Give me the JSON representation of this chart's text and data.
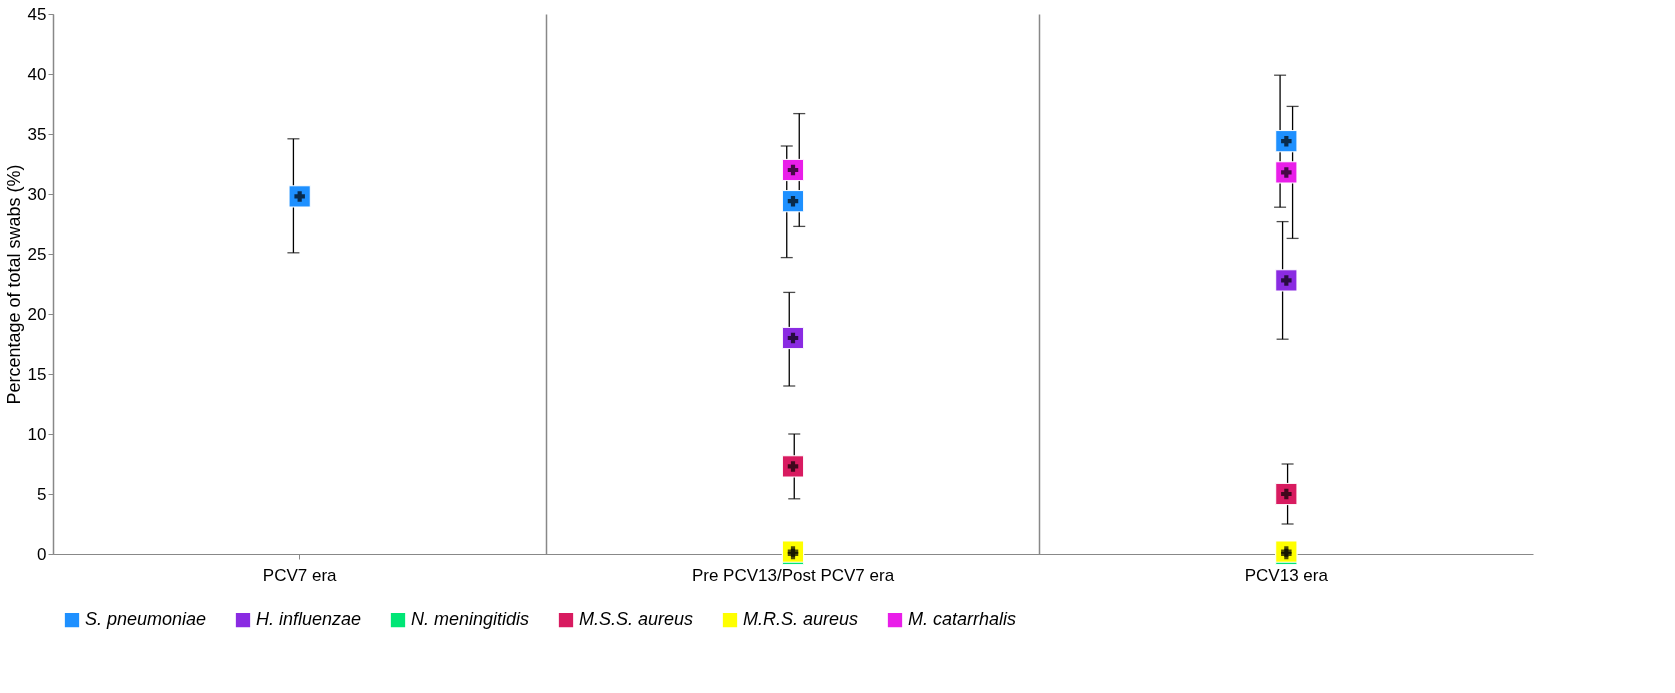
{
  "chart_data": {
    "type": "scatter",
    "ylabel": "Percentage of total swabs (%)",
    "categories": [
      "PCV7 era",
      "Pre PCV13/Post PCV7 era",
      "PCV13 era"
    ],
    "ylim": [
      0,
      45
    ],
    "yticks": [
      0,
      5,
      10,
      15,
      20,
      25,
      30,
      35,
      40,
      45
    ],
    "grid": "x",
    "legend": "bottom",
    "marker": "square",
    "series": [
      {
        "name": "S. pneumoniae",
        "color": "#1e90ff",
        "values": [
          29.8,
          29.4,
          34.4
        ],
        "errors": [
          [
            25.1,
            34.6
          ],
          [
            24.7,
            34.0
          ],
          [
            28.9,
            39.9
          ]
        ]
      },
      {
        "name": "H. influenzae",
        "color": "#8a2be2",
        "values": [
          null,
          18.0,
          22.8
        ],
        "errors": [
          null,
          [
            14.0,
            21.8
          ],
          [
            17.9,
            27.7
          ]
        ]
      },
      {
        "name": "N. meningitidis",
        "color": "#00e676",
        "values": [
          null,
          0,
          0
        ],
        "errors": [
          null,
          null,
          null
        ]
      },
      {
        "name": "M.S.S. aureus",
        "color": "#d81b60",
        "values": [
          null,
          7.3,
          5.0
        ],
        "errors": [
          null,
          [
            4.6,
            10.0
          ],
          [
            2.5,
            7.5
          ]
        ]
      },
      {
        "name": "M.R.S. aureus",
        "color": "#ffff00",
        "values": [
          null,
          0.2,
          0.2
        ],
        "errors": [
          null,
          null,
          null
        ]
      },
      {
        "name": "M. catarrhalis",
        "color": "#e91ee9",
        "values": [
          null,
          32.0,
          31.8
        ],
        "errors": [
          null,
          [
            27.3,
            36.7
          ],
          [
            26.3,
            37.3
          ]
        ]
      }
    ]
  }
}
